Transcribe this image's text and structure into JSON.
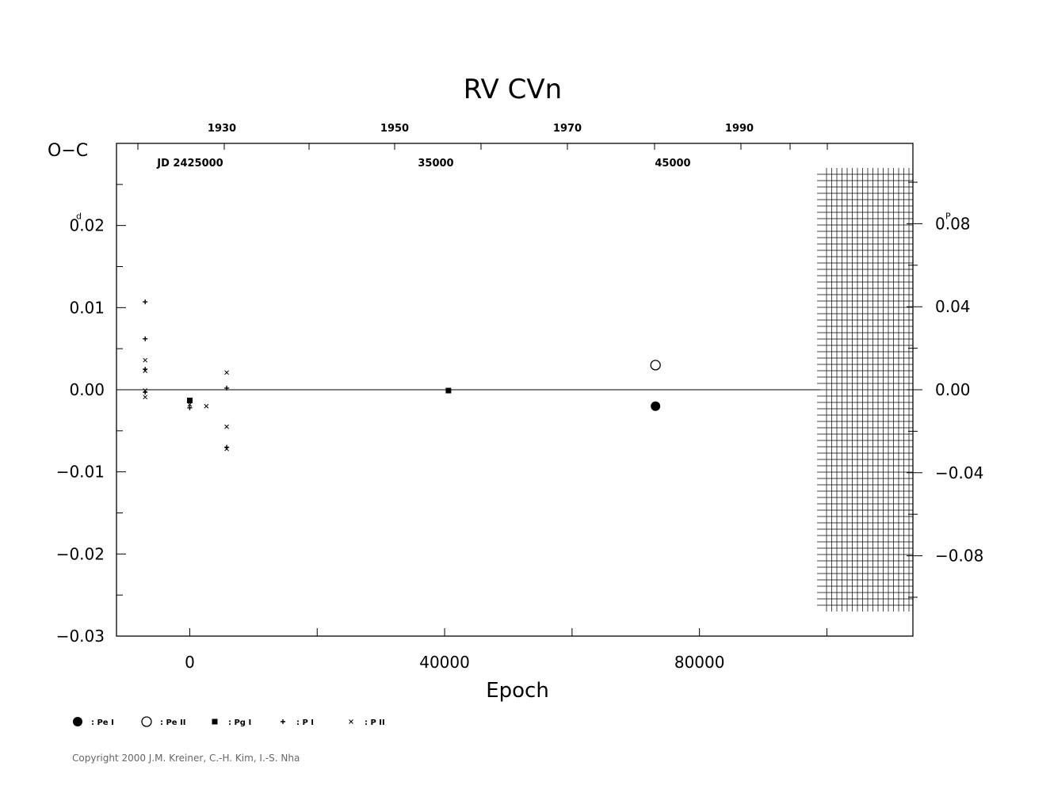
{
  "chart_data": {
    "type": "scatter",
    "title": "RV  CVn",
    "ylabel": "O−C",
    "xlabel": "Epoch",
    "y_unit": "d",
    "right_unit": "P",
    "xlim": [
      -11500,
      113500
    ],
    "ylim": [
      -0.03,
      0.03
    ],
    "x_ticks": [
      0,
      40000,
      80000
    ],
    "x_tick_labels": [
      "0",
      "40000",
      "80000"
    ],
    "y_ticks": [
      0.02,
      0.01,
      0.0,
      -0.01,
      -0.02,
      -0.03
    ],
    "y_tick_labels": [
      "0.02",
      "0.01",
      "0.00",
      "−0.01",
      "−0.02",
      "−0.03"
    ],
    "right_ticks": [
      0.08,
      0.04,
      0.0,
      -0.04,
      -0.08
    ],
    "right_tick_labels": [
      "0.08",
      "0.04",
      "0.00",
      "−0.04",
      "−0.08"
    ],
    "right_scale_period": 0.2527,
    "year_ticks": [
      1930,
      1950,
      1970,
      1990
    ],
    "year_tick_labels": [
      "1930",
      "1950",
      "1970",
      "1990"
    ],
    "jd_labels": [
      "JD  2425000",
      "35000",
      "45000"
    ],
    "series": [
      {
        "name": ": Pe I",
        "marker": "filled-circle",
        "points": [
          [
            73100,
            -0.002
          ]
        ]
      },
      {
        "name": ": Pe II",
        "marker": "open-circle",
        "points": [
          [
            73100,
            0.003
          ]
        ]
      },
      {
        "name": ": Pg I",
        "marker": "filled-square",
        "points": [
          [
            0,
            -0.0013
          ],
          [
            40600,
            -0.0001
          ]
        ]
      },
      {
        "name": ": P I",
        "marker": "plus",
        "points": [
          [
            -7000,
            0.0107
          ],
          [
            -7000,
            0.0062
          ],
          [
            -7000,
            0.0025
          ],
          [
            -7000,
            -0.0003
          ],
          [
            0,
            -0.0022
          ],
          [
            5800,
            0.0002
          ],
          [
            5800,
            -0.007
          ]
        ]
      },
      {
        "name": ": P II",
        "marker": "cross",
        "points": [
          [
            -7000,
            0.0036
          ],
          [
            -7000,
            0.0023
          ],
          [
            -7000,
            -0.0001
          ],
          [
            -7000,
            -0.0009
          ],
          [
            0,
            -0.0018
          ],
          [
            2600,
            -0.002
          ],
          [
            5800,
            0.0021
          ],
          [
            5800,
            -0.0045
          ],
          [
            5800,
            -0.0072
          ]
        ]
      }
    ]
  },
  "copyright": "Copyright 2000 J.M. Kreiner, C.-H. Kim, I.-S. Nha"
}
